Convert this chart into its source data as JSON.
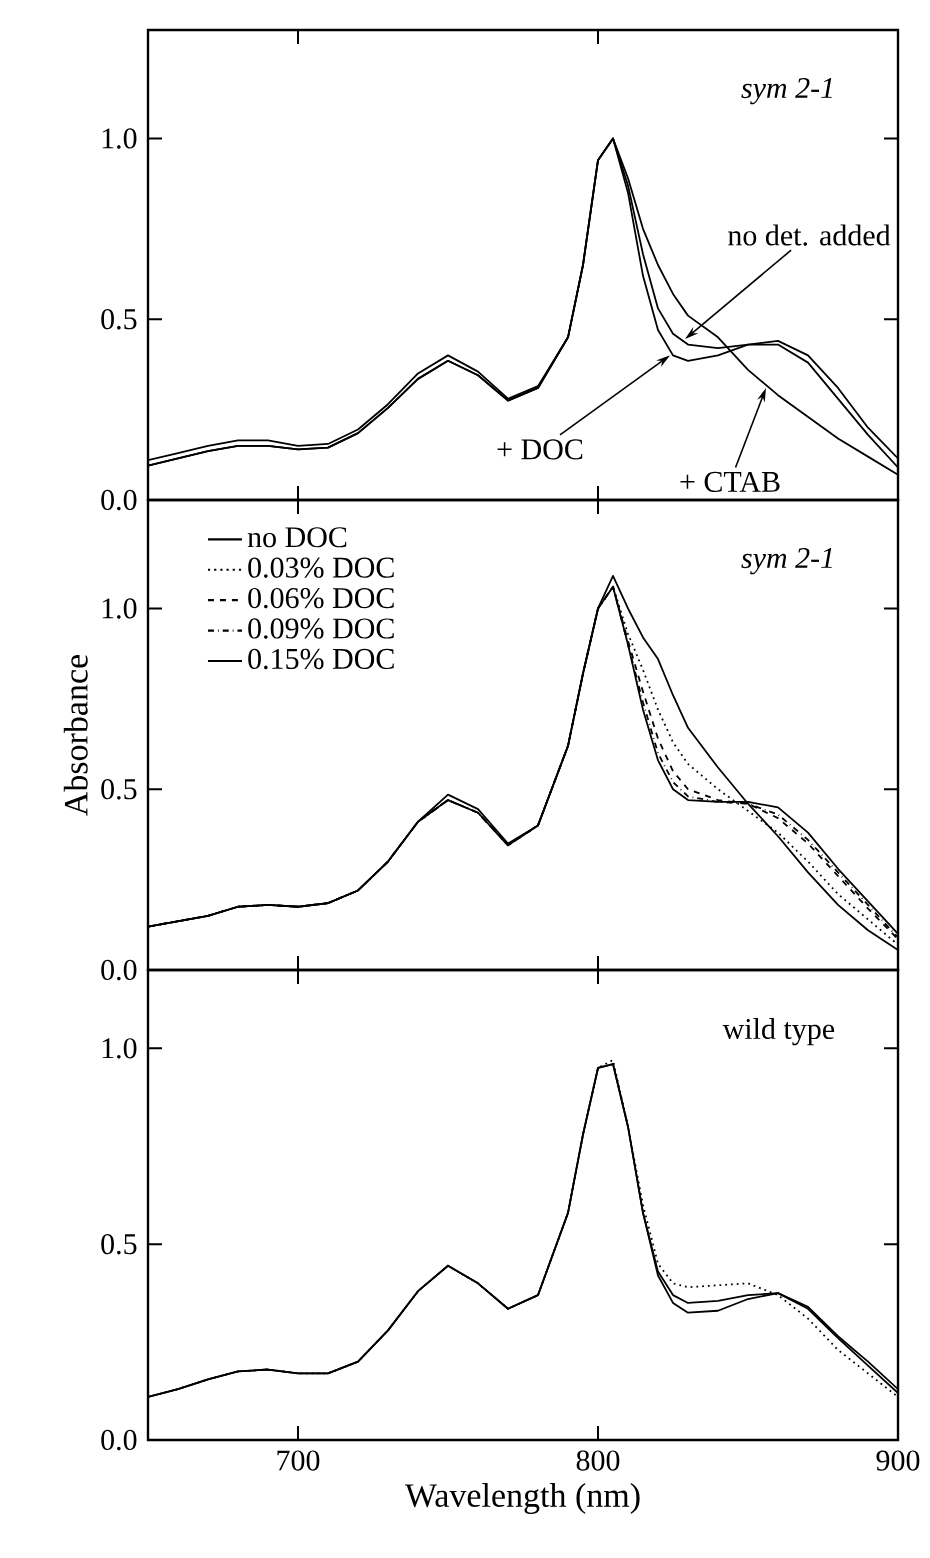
{
  "chart_data": [
    {
      "type": "line",
      "title": "*sym 2-1*",
      "xlim": [
        650,
        900
      ],
      "ylim": [
        0,
        1.3
      ],
      "xticks": [
        700,
        800,
        900
      ],
      "yticks": [
        {
          "value": 0,
          "label": "0.0"
        },
        {
          "value": 0.5,
          "label": "0.5"
        },
        {
          "value": 1.0,
          "label": "1.0"
        }
      ],
      "tick_labels": "y",
      "marker": "none",
      "x": [
        650,
        660,
        670,
        680,
        690,
        700,
        710,
        720,
        730,
        740,
        750,
        760,
        770,
        780,
        790,
        795,
        800,
        805,
        810,
        815,
        820,
        825,
        830,
        840,
        850,
        860,
        870,
        880,
        890,
        900
      ],
      "series": [
        {
          "color": "#000000",
          "line_style": "solid",
          "values": [
            0.095,
            0.115,
            0.135,
            0.15,
            0.15,
            0.14,
            0.145,
            0.185,
            0.255,
            0.335,
            0.385,
            0.345,
            0.275,
            0.31,
            0.45,
            0.65,
            0.94,
            1.0,
            0.87,
            0.68,
            0.53,
            0.46,
            0.43,
            0.42,
            0.43,
            0.43,
            0.38,
            0.28,
            0.18,
            0.09
          ]
        },
        {
          "color": "#000000",
          "line_style": "solid",
          "values": [
            0.11,
            0.13,
            0.15,
            0.165,
            0.165,
            0.15,
            0.155,
            0.195,
            0.265,
            0.35,
            0.4,
            0.355,
            0.28,
            0.315,
            0.45,
            0.65,
            0.94,
            1.0,
            0.85,
            0.62,
            0.47,
            0.4,
            0.385,
            0.4,
            0.43,
            0.44,
            0.4,
            0.31,
            0.2,
            0.115
          ]
        },
        {
          "color": "#000000",
          "line_style": "solid",
          "values": [
            0.095,
            0.115,
            0.135,
            0.15,
            0.15,
            0.14,
            0.145,
            0.185,
            0.255,
            0.335,
            0.385,
            0.345,
            0.275,
            0.31,
            0.45,
            0.65,
            0.94,
            1.0,
            0.89,
            0.75,
            0.65,
            0.57,
            0.51,
            0.45,
            0.36,
            0.29,
            0.23,
            0.17,
            0.12,
            0.07
          ]
        }
      ],
      "annotations": [
        {
          "text": "no det. added",
          "x": 829,
          "y": 0.445
        },
        {
          "text": "+ DOC",
          "x": 824,
          "y": 0.4
        },
        {
          "text": "+ CTAB",
          "x": 856,
          "y": 0.31
        }
      ]
    },
    {
      "type": "line",
      "title": "*sym 2-1*",
      "ylabel": "Absorbance",
      "xlim": [
        650,
        900
      ],
      "ylim": [
        0,
        1.3
      ],
      "xticks": [
        700,
        800,
        900
      ],
      "yticks": [
        {
          "value": 0,
          "label": "0.0"
        },
        {
          "value": 0.5,
          "label": "0.5"
        },
        {
          "value": 1.0,
          "label": "1.0"
        }
      ],
      "tick_labels": "y",
      "marker": "none",
      "legend": "top left",
      "x": [
        650,
        660,
        670,
        680,
        690,
        700,
        710,
        720,
        730,
        740,
        750,
        760,
        770,
        780,
        790,
        795,
        800,
        805,
        810,
        815,
        820,
        825,
        830,
        840,
        850,
        860,
        870,
        880,
        890,
        900
      ],
      "series": [
        {
          "name": "no DOC",
          "color": "#000000",
          "line_style": "solid",
          "values": [
            0.12,
            0.135,
            0.15,
            0.175,
            0.18,
            0.175,
            0.185,
            0.22,
            0.3,
            0.41,
            0.485,
            0.445,
            0.35,
            0.4,
            0.62,
            0.82,
            1.0,
            1.09,
            1.0,
            0.92,
            0.86,
            0.76,
            0.67,
            0.56,
            0.46,
            0.37,
            0.27,
            0.18,
            0.11,
            0.055
          ]
        },
        {
          "name": "0.03% DOC",
          "color": "#000000",
          "line_style": "dotted",
          "values": [
            0.12,
            0.135,
            0.15,
            0.175,
            0.18,
            0.175,
            0.185,
            0.22,
            0.3,
            0.41,
            0.47,
            0.435,
            0.345,
            0.4,
            0.62,
            0.82,
            1.0,
            1.06,
            0.93,
            0.83,
            0.72,
            0.63,
            0.57,
            0.5,
            0.44,
            0.38,
            0.3,
            0.21,
            0.14,
            0.07
          ]
        },
        {
          "name": "0.06% DOC",
          "color": "#000000",
          "line_style": "dashed",
          "values": [
            0.12,
            0.135,
            0.15,
            0.175,
            0.18,
            0.175,
            0.185,
            0.22,
            0.3,
            0.41,
            0.47,
            0.435,
            0.345,
            0.4,
            0.62,
            0.82,
            1.0,
            1.06,
            0.91,
            0.77,
            0.64,
            0.55,
            0.5,
            0.47,
            0.46,
            0.42,
            0.35,
            0.26,
            0.17,
            0.085
          ]
        },
        {
          "name": "0.09% DOC",
          "color": "#000000",
          "line_style": "dashdot",
          "values": [
            0.12,
            0.135,
            0.15,
            0.175,
            0.18,
            0.175,
            0.185,
            0.22,
            0.3,
            0.41,
            0.47,
            0.435,
            0.345,
            0.4,
            0.62,
            0.82,
            1.0,
            1.06,
            0.9,
            0.74,
            0.6,
            0.52,
            0.48,
            0.465,
            0.46,
            0.43,
            0.36,
            0.27,
            0.18,
            0.09
          ]
        },
        {
          "name": "0.15% DOC",
          "color": "#000000",
          "line_style": "solid",
          "values": [
            0.12,
            0.135,
            0.15,
            0.175,
            0.18,
            0.175,
            0.185,
            0.22,
            0.3,
            0.41,
            0.47,
            0.435,
            0.345,
            0.4,
            0.62,
            0.82,
            1.0,
            1.06,
            0.9,
            0.72,
            0.58,
            0.5,
            0.47,
            0.465,
            0.465,
            0.45,
            0.38,
            0.28,
            0.19,
            0.1
          ]
        }
      ]
    },
    {
      "type": "line",
      "title": "wild type",
      "xlabel": "Wavelength (nm)",
      "xlim": [
        650,
        900
      ],
      "ylim": [
        0,
        1.2
      ],
      "xticks": [
        700,
        800,
        900
      ],
      "yticks": [
        {
          "value": 0,
          "label": "0.0"
        },
        {
          "value": 0.5,
          "label": "0.5"
        },
        {
          "value": 1.0,
          "label": "1.0"
        }
      ],
      "marker": "none",
      "x": [
        650,
        660,
        670,
        680,
        690,
        700,
        710,
        720,
        730,
        740,
        750,
        760,
        770,
        780,
        790,
        795,
        800,
        805,
        810,
        815,
        820,
        825,
        830,
        840,
        850,
        860,
        870,
        880,
        890,
        900
      ],
      "series": [
        {
          "color": "#000000",
          "line_style": "solid",
          "values": [
            0.11,
            0.13,
            0.155,
            0.175,
            0.18,
            0.17,
            0.17,
            0.2,
            0.28,
            0.38,
            0.445,
            0.4,
            0.335,
            0.37,
            0.58,
            0.78,
            0.95,
            0.96,
            0.8,
            0.58,
            0.42,
            0.35,
            0.325,
            0.33,
            0.36,
            0.375,
            0.34,
            0.265,
            0.2,
            0.13
          ]
        },
        {
          "color": "#000000",
          "line_style": "solid",
          "values": [
            0.11,
            0.13,
            0.155,
            0.175,
            0.18,
            0.17,
            0.17,
            0.2,
            0.28,
            0.38,
            0.445,
            0.4,
            0.335,
            0.37,
            0.58,
            0.78,
            0.95,
            0.96,
            0.8,
            0.58,
            0.43,
            0.37,
            0.35,
            0.355,
            0.37,
            0.375,
            0.335,
            0.26,
            0.19,
            0.12
          ]
        },
        {
          "color": "#000000",
          "line_style": "dotted",
          "values": [
            0.11,
            0.13,
            0.155,
            0.175,
            0.18,
            0.17,
            0.17,
            0.2,
            0.28,
            0.38,
            0.445,
            0.4,
            0.335,
            0.37,
            0.58,
            0.78,
            0.95,
            0.97,
            0.8,
            0.6,
            0.45,
            0.4,
            0.39,
            0.395,
            0.4,
            0.37,
            0.31,
            0.23,
            0.17,
            0.11
          ]
        }
      ]
    }
  ]
}
